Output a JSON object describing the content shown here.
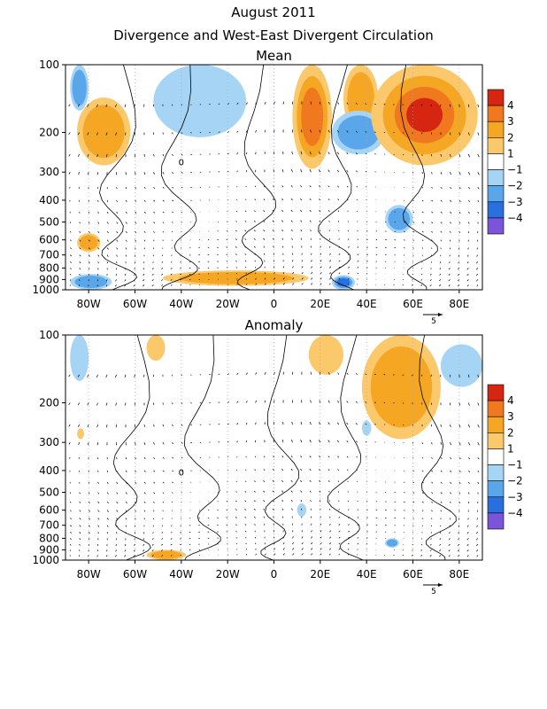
{
  "title_line1": "August 2011",
  "title_line2": "Divergence and West-East Divergent Circulation",
  "colorbar": {
    "labels": [
      "4",
      "3",
      "2",
      "1",
      "−1",
      "−2",
      "−3",
      "−4"
    ],
    "colors": [
      "#d62611",
      "#f0781e",
      "#f5a623",
      "#fbc86b",
      "#ffffff",
      "#a5d4f5",
      "#5aa6ea",
      "#2a6fe0",
      "#7b55d9"
    ]
  },
  "reference_vector_label": "5",
  "contour_label": "0",
  "chart_data": [
    {
      "type": "heatmap",
      "title": "Mean",
      "x_ticks": [
        "80W",
        "60W",
        "40W",
        "20W",
        "0",
        "20E",
        "40E",
        "60E",
        "80E"
      ],
      "y_ticks": [
        "100",
        "200",
        "300",
        "400",
        "500",
        "600",
        "700",
        "800",
        "900",
        "1000"
      ],
      "xlim": [
        -90,
        90
      ],
      "ylim_hPa": [
        1000,
        100
      ],
      "features": [
        {
          "lon": [
            -88,
            -80
          ],
          "p": [
            100,
            160
          ],
          "sign": -2
        },
        {
          "lon": [
            -85,
            -62
          ],
          "p": [
            140,
            280
          ],
          "sign": 2
        },
        {
          "lon": [
            -52,
            -12
          ],
          "p": [
            100,
            210
          ],
          "sign": -1
        },
        {
          "lon": [
            8,
            25
          ],
          "p": [
            100,
            290
          ],
          "sign": 3
        },
        {
          "lon": [
            30,
            45
          ],
          "p": [
            100,
            200
          ],
          "sign": 2
        },
        {
          "lon": [
            25,
            48
          ],
          "p": [
            160,
            250
          ],
          "sign": -2
        },
        {
          "lon": [
            42,
            88
          ],
          "p": [
            100,
            280
          ],
          "sign": 4
        },
        {
          "lon": [
            -85,
            -75
          ],
          "p": [
            560,
            680
          ],
          "sign": 2
        },
        {
          "lon": [
            48,
            60
          ],
          "p": [
            420,
            560
          ],
          "sign": -2
        },
        {
          "lon": [
            -48,
            15
          ],
          "p": [
            820,
            960
          ],
          "sign": 2
        },
        {
          "lon": [
            25,
            35
          ],
          "p": [
            860,
            1000
          ],
          "sign": -3
        },
        {
          "lon": [
            -88,
            -70
          ],
          "p": [
            850,
            1000
          ],
          "sign": -2
        }
      ]
    },
    {
      "type": "heatmap",
      "title": "Anomaly",
      "x_ticks": [
        "80W",
        "60W",
        "40W",
        "20W",
        "0",
        "20E",
        "40E",
        "60E",
        "80E"
      ],
      "y_ticks": [
        "100",
        "200",
        "300",
        "400",
        "500",
        "600",
        "700",
        "800",
        "900",
        "1000"
      ],
      "xlim": [
        -90,
        90
      ],
      "ylim_hPa": [
        1000,
        100
      ],
      "features": [
        {
          "lon": [
            -88,
            -80
          ],
          "p": [
            100,
            160
          ],
          "sign": -1
        },
        {
          "lon": [
            -55,
            -47
          ],
          "p": [
            100,
            130
          ],
          "sign": 1
        },
        {
          "lon": [
            15,
            30
          ],
          "p": [
            100,
            150
          ],
          "sign": 1
        },
        {
          "lon": [
            38,
            72
          ],
          "p": [
            100,
            290
          ],
          "sign": 2
        },
        {
          "lon": [
            72,
            90
          ],
          "p": [
            110,
            170
          ],
          "sign": -1
        },
        {
          "lon": [
            -85,
            -82
          ],
          "p": [
            260,
            290
          ],
          "sign": 1
        },
        {
          "lon": [
            38,
            42
          ],
          "p": [
            240,
            280
          ],
          "sign": -1
        },
        {
          "lon": [
            10,
            14
          ],
          "p": [
            560,
            640
          ],
          "sign": -1
        },
        {
          "lon": [
            48,
            54
          ],
          "p": [
            800,
            880
          ],
          "sign": -2
        },
        {
          "lon": [
            -55,
            -38
          ],
          "p": [
            900,
            1000
          ],
          "sign": 2
        }
      ]
    }
  ]
}
